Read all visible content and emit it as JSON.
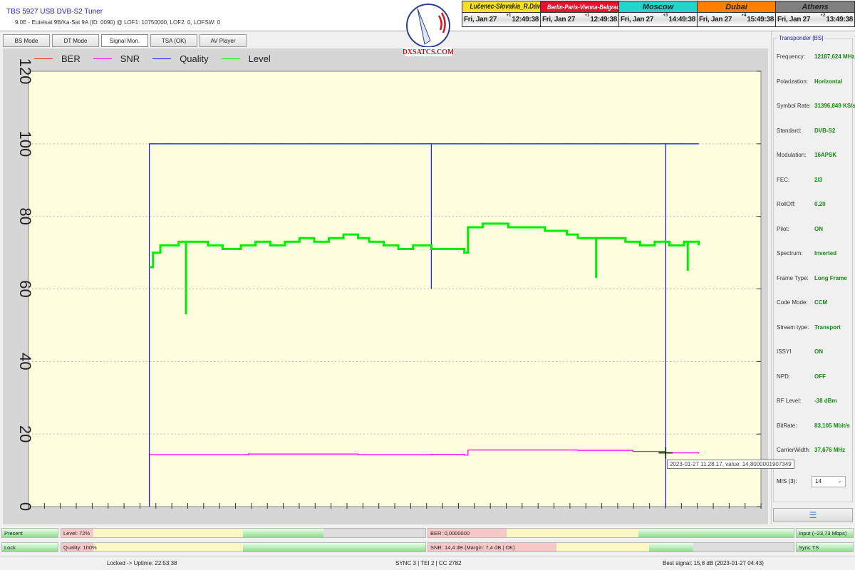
{
  "app": {
    "title": "TBS 5927 USB DVB-S2 Tuner",
    "subtitle": "9.0E - Eutelsat 9B/Ka-Sat 9A (ID: 0090) @ LOF1: 10750000, LOF2: 0, LOFSW: 0",
    "logo_text": "DXSATCS.COM"
  },
  "clocks": [
    {
      "name": "Lučenec-Slovakia_R.Dávid",
      "date": "Fri, Jan 27",
      "offset": "+1",
      "time": "12:49:38",
      "color": "#f5e11e"
    },
    {
      "name": "Berlin-Paris-Vienna-Belgrade",
      "date": "Fri, Jan 27",
      "offset": "+1",
      "time": "12:49:38",
      "color": "#e8102a"
    },
    {
      "name": "Moscow",
      "date": "Fri, Jan 27",
      "offset": "+3",
      "time": "14:49:38",
      "color": "#22d4cc"
    },
    {
      "name": "Dubai",
      "date": "Fri, Jan 27",
      "offset": "+4",
      "time": "15:49:38",
      "color": "#ff7f00"
    },
    {
      "name": "Athens",
      "date": "Fri, Jan 27",
      "offset": "+2",
      "time": "13:49:38",
      "color": "#808080"
    }
  ],
  "tabs": [
    {
      "label": "BS Mode"
    },
    {
      "label": "DT Mode"
    },
    {
      "label": "Signal Mon.",
      "active": true
    },
    {
      "label": "TSA (OK)"
    },
    {
      "label": "AV Player"
    }
  ],
  "chart_data": {
    "type": "line",
    "ylim": [
      0,
      120
    ],
    "yticks": [
      "0",
      "20",
      "40",
      "60",
      "80",
      "100",
      "120"
    ],
    "grid": true,
    "legend": "top-left",
    "xlim": [
      0,
      200
    ],
    "series": [
      {
        "name": "BER",
        "color": "#ff2020",
        "points": []
      },
      {
        "name": "SNR",
        "color": "#ff00ff",
        "points": [
          [
            33,
            0
          ],
          [
            33,
            14.3
          ],
          [
            60,
            14.5
          ],
          [
            90,
            14.3
          ],
          [
            110,
            14.4
          ],
          [
            119,
            14.2
          ],
          [
            120,
            15.6
          ],
          [
            150,
            15.5
          ],
          [
            165,
            15.2
          ],
          [
            174,
            14.8
          ],
          [
            183,
            14.6
          ]
        ]
      },
      {
        "name": "Quality",
        "color": "#2020ff",
        "points": [
          [
            33,
            0
          ],
          [
            33,
            100
          ],
          [
            110,
            100
          ],
          [
            110,
            60
          ],
          [
            110,
            100
          ],
          [
            174,
            100
          ],
          [
            174,
            0
          ],
          [
            174,
            100
          ],
          [
            183,
            100
          ]
        ]
      },
      {
        "name": "Level",
        "color": "#00ee00",
        "points": [
          [
            33,
            66
          ],
          [
            34,
            70
          ],
          [
            36,
            72
          ],
          [
            41,
            73
          ],
          [
            43,
            73
          ],
          [
            43,
            53
          ],
          [
            43,
            73
          ],
          [
            49,
            72
          ],
          [
            53,
            71
          ],
          [
            58,
            72
          ],
          [
            62,
            73
          ],
          [
            66,
            72
          ],
          [
            70,
            73
          ],
          [
            74,
            74
          ],
          [
            78,
            73
          ],
          [
            82,
            74
          ],
          [
            86,
            75
          ],
          [
            90,
            74
          ],
          [
            93,
            73
          ],
          [
            97,
            72
          ],
          [
            101,
            71
          ],
          [
            105,
            72
          ],
          [
            110,
            71
          ],
          [
            119,
            70
          ],
          [
            120,
            77
          ],
          [
            124,
            78
          ],
          [
            131,
            77
          ],
          [
            141,
            76
          ],
          [
            147,
            75
          ],
          [
            150,
            74
          ],
          [
            155,
            74
          ],
          [
            155,
            63
          ],
          [
            155,
            74
          ],
          [
            163,
            73
          ],
          [
            167,
            72
          ],
          [
            171,
            73
          ],
          [
            175,
            72
          ],
          [
            179,
            73
          ],
          [
            180,
            65
          ],
          [
            180,
            73
          ],
          [
            183,
            72
          ]
        ]
      }
    ],
    "tooltip": "2023-01-27 11.28.17, value: 14,8000001907349"
  },
  "transponder": {
    "caption": "Transponder [BS]",
    "rows": [
      {
        "k": "Frequency:",
        "v": "12187,624 MHz"
      },
      {
        "k": "Polarization:",
        "v": "Horizontal"
      },
      {
        "k": "Symbol Rate:",
        "v": "31396,849 KS/s"
      },
      {
        "k": "Standard:",
        "v": "DVB-S2"
      },
      {
        "k": "Modulation:",
        "v": "16APSK"
      },
      {
        "k": "FEC:",
        "v": "2/3"
      },
      {
        "k": "RollOff:",
        "v": "0.20"
      },
      {
        "k": "Pilot:",
        "v": "ON"
      },
      {
        "k": "Spectrum:",
        "v": "Inverted"
      },
      {
        "k": "Frame Type:",
        "v": "Long Frame"
      },
      {
        "k": "Code Mode:",
        "v": "CCM"
      },
      {
        "k": "Stream type:",
        "v": "Transport"
      },
      {
        "k": "ISSYI",
        "v": "ON"
      },
      {
        "k": "NPD:",
        "v": "OFF"
      },
      {
        "k": "RF Level:",
        "v": "-38 dBm"
      },
      {
        "k": "BitRate:",
        "v": "83,105 Mbit/s"
      },
      {
        "k": "CarrierWidth:",
        "v": "37,676 MHz"
      }
    ],
    "mis_label": "MIS (3):",
    "mis_value": "14"
  },
  "meters": {
    "present": "Present",
    "lock": "Lock",
    "level": "Level: 72%",
    "level_pct": 72,
    "quality": "Quality: 100%",
    "quality_pct": 100,
    "ber": "BER: 0,0000000",
    "snr": "SNR: 14,4 dB (Margin: 7,4 dB | OK)",
    "input": "Input (~23,73 Mbps)",
    "sync": "Sync TS"
  },
  "status": {
    "uptime": "Locked -> Uptime: 22:53:38",
    "sync": "SYNC 3 | TEI 2 | CC 2782",
    "best": "Best signal: 15,8 dB (2023-01-27 04:43)"
  }
}
